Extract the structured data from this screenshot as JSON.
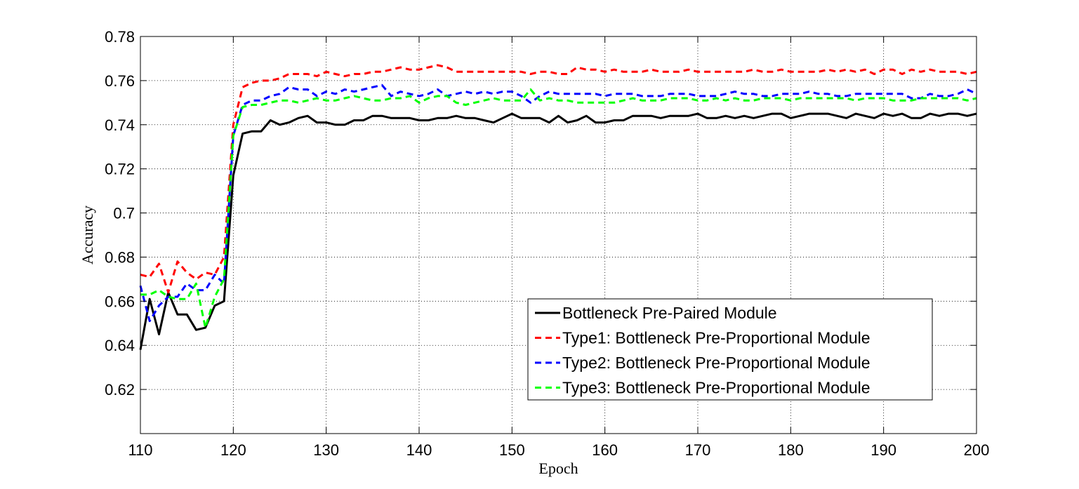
{
  "chart_data": {
    "type": "line",
    "title": "",
    "xlabel": "Epoch",
    "ylabel": "Accuracy",
    "xlim": [
      110,
      200
    ],
    "ylim": [
      0.6,
      0.78
    ],
    "xticks": [
      110,
      120,
      130,
      140,
      150,
      160,
      170,
      180,
      190,
      200
    ],
    "xtick_labels": [
      "110",
      "120",
      "130",
      "140",
      "150",
      "160",
      "170",
      "180",
      "190",
      "200"
    ],
    "yticks": [
      0.62,
      0.64,
      0.66,
      0.68,
      0.7,
      0.72,
      0.74,
      0.76,
      0.78
    ],
    "ytick_labels": [
      "0.62",
      "0.64",
      "0.66",
      "0.68",
      "0.7",
      "0.72",
      "0.74",
      "0.76",
      "0.78"
    ],
    "grid": true,
    "legend_position": "lower-right",
    "series": [
      {
        "name": "Bottleneck Pre-Paired Module",
        "color": "#000000",
        "style": "solid",
        "x": [
          110,
          111,
          112,
          113,
          114,
          115,
          116,
          117,
          118,
          119,
          120,
          121,
          122,
          123,
          124,
          125,
          126,
          127,
          128,
          129,
          130,
          131,
          132,
          133,
          134,
          135,
          136,
          137,
          138,
          139,
          140,
          141,
          142,
          143,
          144,
          145,
          146,
          147,
          148,
          149,
          150,
          151,
          152,
          153,
          154,
          155,
          156,
          157,
          158,
          159,
          160,
          161,
          162,
          163,
          164,
          165,
          166,
          167,
          168,
          169,
          170,
          171,
          172,
          173,
          174,
          175,
          176,
          177,
          178,
          179,
          180,
          181,
          182,
          183,
          184,
          185,
          186,
          187,
          188,
          189,
          190,
          191,
          192,
          193,
          194,
          195,
          196,
          197,
          198,
          199,
          200
        ],
        "y": [
          0.638,
          0.661,
          0.645,
          0.664,
          0.654,
          0.654,
          0.647,
          0.648,
          0.658,
          0.66,
          0.717,
          0.736,
          0.737,
          0.737,
          0.742,
          0.74,
          0.741,
          0.743,
          0.744,
          0.741,
          0.741,
          0.74,
          0.74,
          0.742,
          0.742,
          0.744,
          0.744,
          0.743,
          0.743,
          0.743,
          0.742,
          0.742,
          0.743,
          0.743,
          0.744,
          0.743,
          0.743,
          0.742,
          0.741,
          0.743,
          0.745,
          0.743,
          0.743,
          0.743,
          0.741,
          0.744,
          0.741,
          0.742,
          0.744,
          0.741,
          0.741,
          0.742,
          0.742,
          0.744,
          0.744,
          0.744,
          0.743,
          0.744,
          0.744,
          0.744,
          0.745,
          0.743,
          0.743,
          0.744,
          0.743,
          0.744,
          0.743,
          0.744,
          0.745,
          0.745,
          0.743,
          0.744,
          0.745,
          0.745,
          0.745,
          0.744,
          0.743,
          0.745,
          0.744,
          0.743,
          0.745,
          0.744,
          0.745,
          0.743,
          0.743,
          0.745,
          0.744,
          0.745,
          0.745,
          0.744,
          0.745
        ]
      },
      {
        "name": "Type1: Bottleneck Pre-Proportional Module",
        "color": "#ff0000",
        "style": "dashed",
        "x": [
          110,
          111,
          112,
          113,
          114,
          115,
          116,
          117,
          118,
          119,
          120,
          121,
          122,
          123,
          124,
          125,
          126,
          127,
          128,
          129,
          130,
          131,
          132,
          133,
          134,
          135,
          136,
          137,
          138,
          139,
          140,
          141,
          142,
          143,
          144,
          145,
          146,
          147,
          148,
          149,
          150,
          151,
          152,
          153,
          154,
          155,
          156,
          157,
          158,
          159,
          160,
          161,
          162,
          163,
          164,
          165,
          166,
          167,
          168,
          169,
          170,
          171,
          172,
          173,
          174,
          175,
          176,
          177,
          178,
          179,
          180,
          181,
          182,
          183,
          184,
          185,
          186,
          187,
          188,
          189,
          190,
          191,
          192,
          193,
          194,
          195,
          196,
          197,
          198,
          199,
          200
        ],
        "y": [
          0.672,
          0.671,
          0.677,
          0.664,
          0.678,
          0.673,
          0.67,
          0.673,
          0.672,
          0.68,
          0.74,
          0.757,
          0.759,
          0.76,
          0.76,
          0.761,
          0.763,
          0.763,
          0.763,
          0.762,
          0.764,
          0.763,
          0.762,
          0.763,
          0.763,
          0.764,
          0.764,
          0.765,
          0.766,
          0.765,
          0.765,
          0.766,
          0.767,
          0.766,
          0.764,
          0.764,
          0.764,
          0.764,
          0.764,
          0.764,
          0.764,
          0.764,
          0.763,
          0.764,
          0.764,
          0.763,
          0.763,
          0.766,
          0.765,
          0.765,
          0.764,
          0.765,
          0.764,
          0.764,
          0.764,
          0.765,
          0.764,
          0.764,
          0.764,
          0.765,
          0.764,
          0.764,
          0.764,
          0.764,
          0.764,
          0.764,
          0.765,
          0.764,
          0.764,
          0.765,
          0.764,
          0.764,
          0.764,
          0.764,
          0.765,
          0.764,
          0.765,
          0.764,
          0.765,
          0.763,
          0.765,
          0.765,
          0.763,
          0.765,
          0.764,
          0.765,
          0.764,
          0.764,
          0.764,
          0.763,
          0.764
        ]
      },
      {
        "name": "Type2: Bottleneck Pre-Proportional Module",
        "color": "#0000ff",
        "style": "dashed",
        "x": [
          110,
          111,
          112,
          113,
          114,
          115,
          116,
          117,
          118,
          119,
          120,
          121,
          122,
          123,
          124,
          125,
          126,
          127,
          128,
          129,
          130,
          131,
          132,
          133,
          134,
          135,
          136,
          137,
          138,
          139,
          140,
          141,
          142,
          143,
          144,
          145,
          146,
          147,
          148,
          149,
          150,
          151,
          152,
          153,
          154,
          155,
          156,
          157,
          158,
          159,
          160,
          161,
          162,
          163,
          164,
          165,
          166,
          167,
          168,
          169,
          170,
          171,
          172,
          173,
          174,
          175,
          176,
          177,
          178,
          179,
          180,
          181,
          182,
          183,
          184,
          185,
          186,
          187,
          188,
          189,
          190,
          191,
          192,
          193,
          194,
          195,
          196,
          197,
          198,
          199,
          200
        ],
        "y": [
          0.667,
          0.651,
          0.658,
          0.662,
          0.662,
          0.668,
          0.665,
          0.665,
          0.672,
          0.668,
          0.735,
          0.749,
          0.751,
          0.751,
          0.753,
          0.754,
          0.757,
          0.756,
          0.756,
          0.753,
          0.755,
          0.754,
          0.756,
          0.755,
          0.756,
          0.757,
          0.758,
          0.753,
          0.755,
          0.754,
          0.753,
          0.754,
          0.756,
          0.753,
          0.754,
          0.755,
          0.754,
          0.755,
          0.754,
          0.755,
          0.755,
          0.753,
          0.75,
          0.753,
          0.755,
          0.754,
          0.754,
          0.754,
          0.754,
          0.754,
          0.753,
          0.754,
          0.754,
          0.754,
          0.753,
          0.753,
          0.753,
          0.754,
          0.754,
          0.754,
          0.753,
          0.753,
          0.753,
          0.754,
          0.755,
          0.754,
          0.754,
          0.753,
          0.753,
          0.754,
          0.754,
          0.754,
          0.755,
          0.754,
          0.754,
          0.753,
          0.753,
          0.754,
          0.754,
          0.754,
          0.754,
          0.754,
          0.754,
          0.752,
          0.752,
          0.754,
          0.753,
          0.753,
          0.754,
          0.756,
          0.754
        ]
      },
      {
        "name": "Type3: Bottleneck Pre-Proportional Module",
        "color": "#00ff00",
        "style": "dashed",
        "x": [
          110,
          111,
          112,
          113,
          114,
          115,
          116,
          117,
          118,
          119,
          120,
          121,
          122,
          123,
          124,
          125,
          126,
          127,
          128,
          129,
          130,
          131,
          132,
          133,
          134,
          135,
          136,
          137,
          138,
          139,
          140,
          141,
          142,
          143,
          144,
          145,
          146,
          147,
          148,
          149,
          150,
          151,
          152,
          153,
          154,
          155,
          156,
          157,
          158,
          159,
          160,
          161,
          162,
          163,
          164,
          165,
          166,
          167,
          168,
          169,
          170,
          171,
          172,
          173,
          174,
          175,
          176,
          177,
          178,
          179,
          180,
          181,
          182,
          183,
          184,
          185,
          186,
          187,
          188,
          189,
          190,
          191,
          192,
          193,
          194,
          195,
          196,
          197,
          198,
          199,
          200
        ],
        "y": [
          0.663,
          0.663,
          0.665,
          0.662,
          0.661,
          0.661,
          0.668,
          0.648,
          0.662,
          0.67,
          0.735,
          0.748,
          0.749,
          0.749,
          0.75,
          0.751,
          0.751,
          0.75,
          0.751,
          0.752,
          0.751,
          0.751,
          0.752,
          0.753,
          0.752,
          0.751,
          0.751,
          0.752,
          0.752,
          0.753,
          0.75,
          0.752,
          0.753,
          0.753,
          0.75,
          0.749,
          0.75,
          0.751,
          0.752,
          0.751,
          0.751,
          0.751,
          0.756,
          0.751,
          0.752,
          0.751,
          0.751,
          0.75,
          0.75,
          0.75,
          0.75,
          0.75,
          0.751,
          0.752,
          0.751,
          0.751,
          0.751,
          0.752,
          0.752,
          0.752,
          0.751,
          0.751,
          0.752,
          0.751,
          0.752,
          0.751,
          0.751,
          0.752,
          0.752,
          0.752,
          0.751,
          0.752,
          0.752,
          0.752,
          0.752,
          0.752,
          0.752,
          0.751,
          0.752,
          0.752,
          0.752,
          0.751,
          0.751,
          0.751,
          0.752,
          0.752,
          0.752,
          0.752,
          0.752,
          0.751,
          0.752
        ]
      }
    ]
  }
}
